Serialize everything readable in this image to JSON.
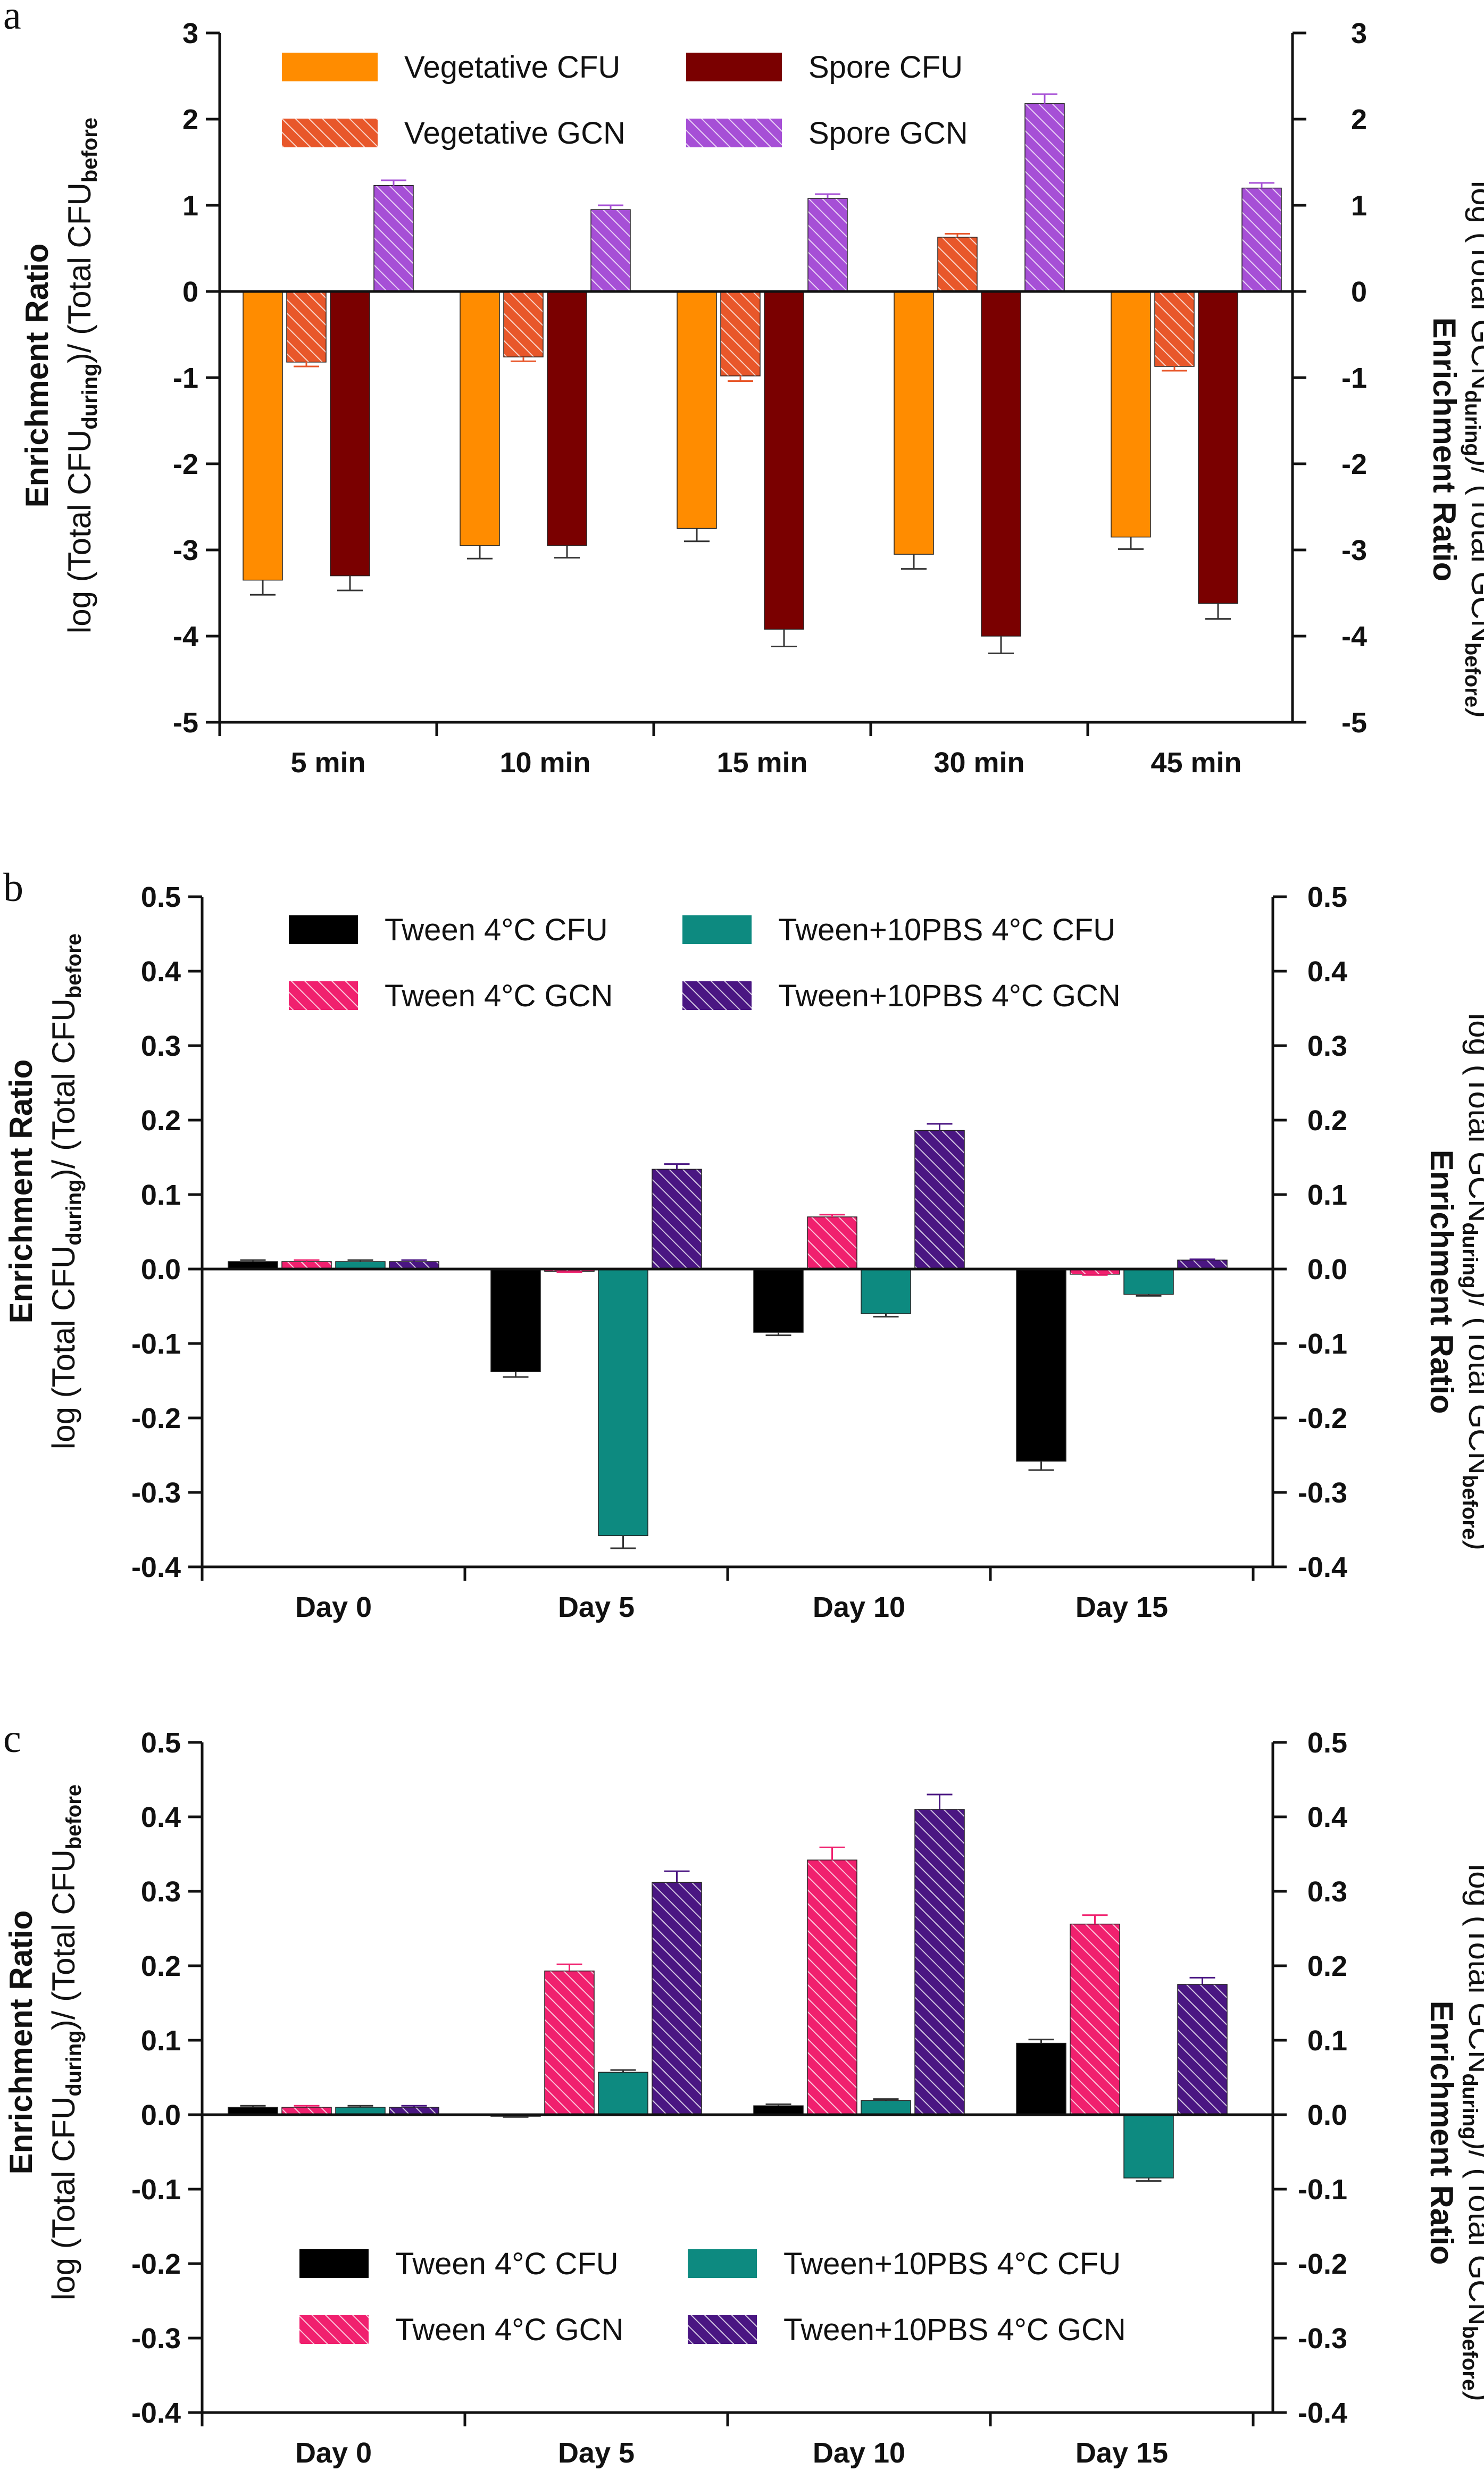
{
  "colors": {
    "veg_cfu": "#ff8c00",
    "veg_gcn": "#e8572a",
    "spore_cfu": "#7a0000",
    "spore_gcn": "#a64fd6",
    "tween_cfu": "#000000",
    "tween_gcn": "#f0206e",
    "pbs_cfu": "#0d8a80",
    "pbs_gcn": "#4a1682"
  },
  "chart_data": [
    {
      "panel": "a",
      "type": "bar",
      "categories": [
        "5 min",
        "10 min",
        "15 min",
        "30 min",
        "45 min"
      ],
      "ylim": [
        -5,
        3
      ],
      "yticks": [
        "3",
        "2",
        "1",
        "0",
        "-1",
        "-2",
        "-3",
        "-4",
        "-5"
      ],
      "ylabel_left_1": "Enrichment Ratio",
      "ylabel_left_2": {
        "a": "log (Total CFU",
        "b": "during",
        "c": ")/ (Total CFU",
        "d": "before"
      },
      "ylabel_right_1": "Enrichment Ratio",
      "ylabel_right_2": {
        "a": "log (Total GCN",
        "b": "during",
        "c": ")/ (Total GCN",
        "d": "before",
        "e": ")"
      },
      "legend_position": "top-left",
      "series": [
        {
          "name": "Vegetative CFU",
          "color": "#ff8c00",
          "hatch": false,
          "values": [
            -3.35,
            -2.95,
            -2.75,
            -3.05,
            -2.85
          ],
          "errors": [
            0.17,
            0.15,
            0.15,
            0.17,
            0.14
          ]
        },
        {
          "name": "Vegetative GCN",
          "color": "#e8572a",
          "hatch": true,
          "values": [
            -0.82,
            -0.76,
            -0.98,
            0.63,
            -0.87
          ],
          "errors": [
            0.05,
            0.05,
            0.06,
            0.04,
            0.05
          ]
        },
        {
          "name": "Spore CFU",
          "color": "#7a0000",
          "hatch": false,
          "values": [
            -3.3,
            -2.95,
            -3.92,
            -4.0,
            -3.62
          ],
          "errors": [
            0.17,
            0.14,
            0.2,
            0.2,
            0.18
          ]
        },
        {
          "name": "Spore GCN",
          "color": "#a64fd6",
          "hatch": true,
          "values": [
            1.23,
            0.95,
            1.08,
            2.18,
            1.2
          ],
          "errors": [
            0.06,
            0.05,
            0.05,
            0.11,
            0.06
          ]
        }
      ]
    },
    {
      "panel": "b",
      "type": "bar",
      "categories": [
        "Day 0",
        "Day 5",
        "Day 10",
        "Day 15"
      ],
      "ylim": [
        -0.4,
        0.5
      ],
      "yticks": [
        "0.5",
        "0.4",
        "0.3",
        "0.2",
        "0.1",
        "0.0",
        "-0.1",
        "-0.2",
        "-0.3",
        "-0.4"
      ],
      "ylabel_left_1": "Enrichment Ratio",
      "ylabel_left_2": {
        "a": "log (Total CFU",
        "b": "during",
        "c": ")/ (Total CFU",
        "d": "before"
      },
      "ylabel_right_1": "Enrichment Ratio",
      "ylabel_right_2": {
        "a": "log (Total GCN",
        "b": "during",
        "c": ")/ (Total GCN",
        "d": "before",
        "e": ")"
      },
      "legend_position": "top-left",
      "series": [
        {
          "name": "Tween 4°C CFU",
          "color": "#000000",
          "hatch": false,
          "values": [
            0.01,
            -0.138,
            -0.085,
            -0.258
          ],
          "errors": [
            0.002,
            0.007,
            0.004,
            0.012
          ]
        },
        {
          "name": "Tween 4°C GCN",
          "color": "#f0206e",
          "hatch": true,
          "values": [
            0.01,
            -0.003,
            0.07,
            -0.007
          ],
          "errors": [
            0.002,
            0.001,
            0.003,
            0.001
          ]
        },
        {
          "name": "Tween+10PBS 4°C CFU",
          "color": "#0d8a80",
          "hatch": false,
          "values": [
            0.01,
            -0.358,
            -0.06,
            -0.034
          ],
          "errors": [
            0.002,
            0.017,
            0.004,
            0.002
          ]
        },
        {
          "name": "Tween+10PBS 4°C GCN",
          "color": "#4a1682",
          "hatch": true,
          "values": [
            0.01,
            0.134,
            0.186,
            0.012
          ],
          "errors": [
            0.002,
            0.007,
            0.009,
            0.001
          ]
        }
      ]
    },
    {
      "panel": "c",
      "type": "bar",
      "categories": [
        "Day 0",
        "Day 5",
        "Day 10",
        "Day 15"
      ],
      "ylim": [
        -0.4,
        0.5
      ],
      "yticks": [
        "0.5",
        "0.4",
        "0.3",
        "0.2",
        "0.1",
        "0.0",
        "-0.1",
        "-0.2",
        "-0.3",
        "-0.4"
      ],
      "ylabel_left_1": "Enrichment Ratio",
      "ylabel_left_2": {
        "a": "log (Total CFU",
        "b": "during",
        "c": ")/ (Total CFU",
        "d": "before"
      },
      "ylabel_right_1": "Enrichment Ratio",
      "ylabel_right_2": {
        "a": "log (Total GCN",
        "b": "during",
        "c": ")/ (Total GCN",
        "d": "before",
        "e": ")"
      },
      "legend_position": "bottom-left",
      "series": [
        {
          "name": "Tween 4°C CFU",
          "color": "#000000",
          "hatch": false,
          "values": [
            0.01,
            -0.002,
            0.012,
            0.096
          ],
          "errors": [
            0.002,
            0.001,
            0.002,
            0.005
          ]
        },
        {
          "name": "Tween 4°C GCN",
          "color": "#f0206e",
          "hatch": true,
          "values": [
            0.01,
            0.193,
            0.342,
            0.256
          ],
          "errors": [
            0.002,
            0.009,
            0.017,
            0.012
          ]
        },
        {
          "name": "Tween+10PBS 4°C CFU",
          "color": "#0d8a80",
          "hatch": false,
          "values": [
            0.01,
            0.057,
            0.019,
            -0.085
          ],
          "errors": [
            0.002,
            0.003,
            0.002,
            0.004
          ]
        },
        {
          "name": "Tween+10PBS 4°C GCN",
          "color": "#4a1682",
          "hatch": true,
          "values": [
            0.01,
            0.312,
            0.41,
            0.175
          ],
          "errors": [
            0.002,
            0.015,
            0.02,
            0.009
          ]
        }
      ]
    }
  ]
}
